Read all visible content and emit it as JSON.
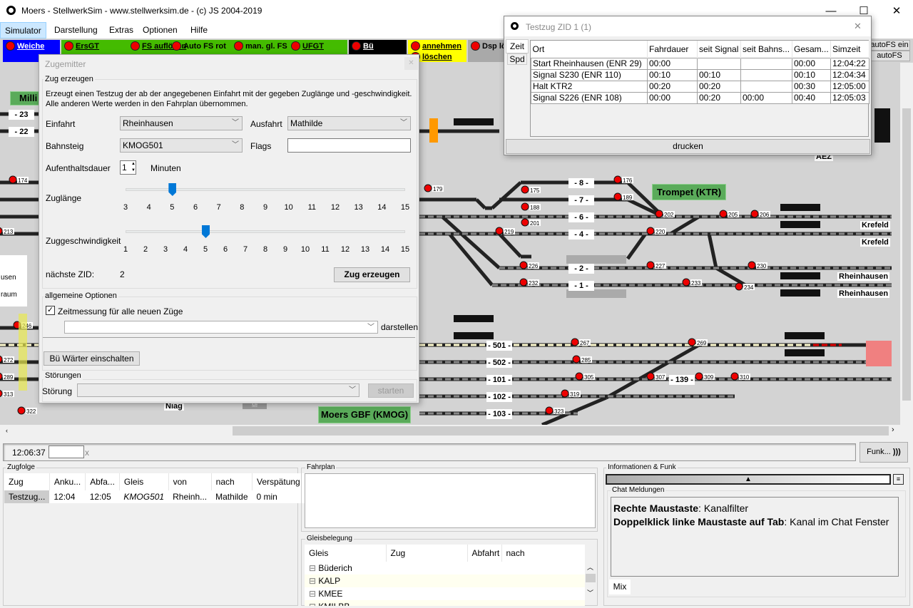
{
  "window": {
    "title": "Moers - StellwerkSim - www.stellwerksim.de - (c) JS 2004-2019",
    "minimize": "—",
    "maximize": "☐",
    "close": "✕"
  },
  "menu": [
    "Simulator",
    "Darstellung",
    "Extras",
    "Optionen",
    "Hilfe"
  ],
  "toolbar": {
    "weiche": "Weiche",
    "green": [
      "ErsGT",
      "FS auflösen",
      "Auto FS rot",
      "man. gl. FS",
      "UFGT"
    ],
    "bue": "Bü",
    "annehmen": "annehmen",
    "loeschen": "löschen",
    "dsp": "Dsp lösen",
    "autofs_ein": "autoFS ein",
    "autofs_aus": "autoFS aus",
    "colors": {
      "weiche": "#0000ff",
      "green": "#44bb00",
      "bue": "#000000",
      "yellow": "#ffff00",
      "gray": "#a9a9a9"
    }
  },
  "tracks": {
    "t8": "- 8 -",
    "t7": "- 7 -",
    "t6": "- 6 -",
    "t4": "- 4 -",
    "t2": "- 2 -",
    "t1": "- 1 -",
    "t501": "- 501 -",
    "t502": "- 502 -",
    "t101": "- 101 -",
    "t102": "- 102 -",
    "t103": "- 103 -",
    "t139": "- 139 -",
    "t23": "- 23",
    "t22": "- 22"
  },
  "signals": [
    "174",
    "179",
    "175",
    "176",
    "188",
    "189",
    "201",
    "202",
    "205",
    "206",
    "213",
    "219",
    "220",
    "226",
    "227",
    "230",
    "232",
    "233",
    "234",
    "246",
    "267",
    "269",
    "272",
    "285",
    "289",
    "305",
    "307",
    "309",
    "310",
    "313",
    "319",
    "322",
    "323"
  ],
  "places": {
    "trompet": "Trompet (KTR)",
    "moers_gbf": "Moers GBF (KMOG)",
    "milli": "Milli",
    "krefeld1": "Krefeld",
    "krefeld2": "Krefeld",
    "rheinhausen1": "Rheinhausen",
    "rheinhausen2": "Rheinhausen",
    "aez": "AEZ",
    "niag": "Niag",
    "mf": "Mf",
    "usen": "usen",
    "raum": "raum"
  },
  "zugemitter": {
    "title": "Zugemitter",
    "close": "✕",
    "group_create": "Zug erzeugen",
    "desc1": "Erzeugt einen Testzug der ab der angegebenen Einfahrt mit der gegeben Zuglänge und -geschwindigkeit.",
    "desc2": "Alle anderen Werte werden in den Fahrplan übernommen.",
    "einfahrt_label": "Einfahrt",
    "einfahrt": "Rheinhausen",
    "ausfahrt_label": "Ausfahrt",
    "ausfahrt": "Mathilde",
    "bahnsteig_label": "Bahnsteig",
    "bahnsteig": "KMOG501",
    "flags_label": "Flags",
    "flags": "",
    "aufenthalt_label": "Aufenthaltsdauer",
    "aufenthalt": "1",
    "minuten": "Minuten",
    "zuglaenge_label": "Zuglänge",
    "zuglaenge": 5,
    "zuglaenge_ticks": [
      "3",
      "4",
      "5",
      "6",
      "7",
      "8",
      "9",
      "10",
      "11",
      "12",
      "13",
      "14",
      "15"
    ],
    "zuggeschw_label": "Zuggeschwindigkeit",
    "zuggeschw": 5,
    "zuggeschw_ticks": [
      "1",
      "2",
      "3",
      "4",
      "5",
      "6",
      "7",
      "8",
      "9",
      "10",
      "11",
      "12",
      "13",
      "14",
      "15"
    ],
    "next_zid_label": "nächste ZID:",
    "next_zid": "2",
    "create_button": "Zug erzeugen",
    "group_options": "allgemeine Optionen",
    "zeitmessung": "Zeitmessung für alle neuen Züge",
    "zeitmessung_checked": true,
    "darstellen_value": "",
    "darstellen": "darstellen",
    "bue_button": "Bü Wärter einschalten",
    "group_stoer": "Störungen",
    "stoerung_label": "Störung",
    "stoerung_value": "",
    "starten": "starten"
  },
  "testzug": {
    "title": "Testzug ZID 1 (1)",
    "close": "✕",
    "tabs": [
      "Zeit",
      "Spd"
    ],
    "columns": [
      "Ort",
      "Fahrdauer",
      "seit Signal",
      "seit Bahns...",
      "Gesam...",
      "Simzeit"
    ],
    "rows": [
      [
        "Start Rheinhausen (ENR 29)",
        "00:00",
        "",
        "",
        "00:00",
        "12:04:22"
      ],
      [
        "Signal S230 (ENR 110)",
        "00:10",
        "00:10",
        "",
        "00:10",
        "12:04:34"
      ],
      [
        "Halt KTR2",
        "00:20",
        "00:20",
        "",
        "00:30",
        "12:05:00"
      ],
      [
        "Signal S226 (ENR 108)",
        "00:00",
        "00:20",
        "00:00",
        "00:40",
        "12:05:03"
      ]
    ],
    "print": "drucken"
  },
  "status": {
    "time": "12:06:37",
    "input": "",
    "clear": "x",
    "funk": "Funk..."
  },
  "zugfolge": {
    "title": "Zugfolge",
    "columns": [
      "Zug",
      "Anku...",
      "Abfa...",
      "Gleis",
      "von",
      "nach",
      "Verspätung"
    ],
    "rows": [
      [
        "Testzug...",
        "12:04",
        "12:05",
        "KMOG501",
        "Rheinh...",
        "Mathilde",
        "0 min"
      ]
    ]
  },
  "fahrplan": {
    "title": "Fahrplan"
  },
  "gleisbelegung": {
    "title": "Gleisbelegung",
    "columns": [
      "Gleis",
      "Zug",
      "Abfahrt",
      "nach"
    ],
    "rows": [
      "Büderich",
      "KALP",
      "KMEE",
      "KMILBB"
    ]
  },
  "info": {
    "title": "Informationen & Funk",
    "chat_title": "Chat Meldungen",
    "line1_bold": "Rechte Maustaste",
    "line1_rest": ": Kanalfilter",
    "line2_bold": "Doppelklick linke Maustaste auf Tab",
    "line2_rest": ": Kanal im Chat Fenster",
    "tab": "Mix"
  }
}
